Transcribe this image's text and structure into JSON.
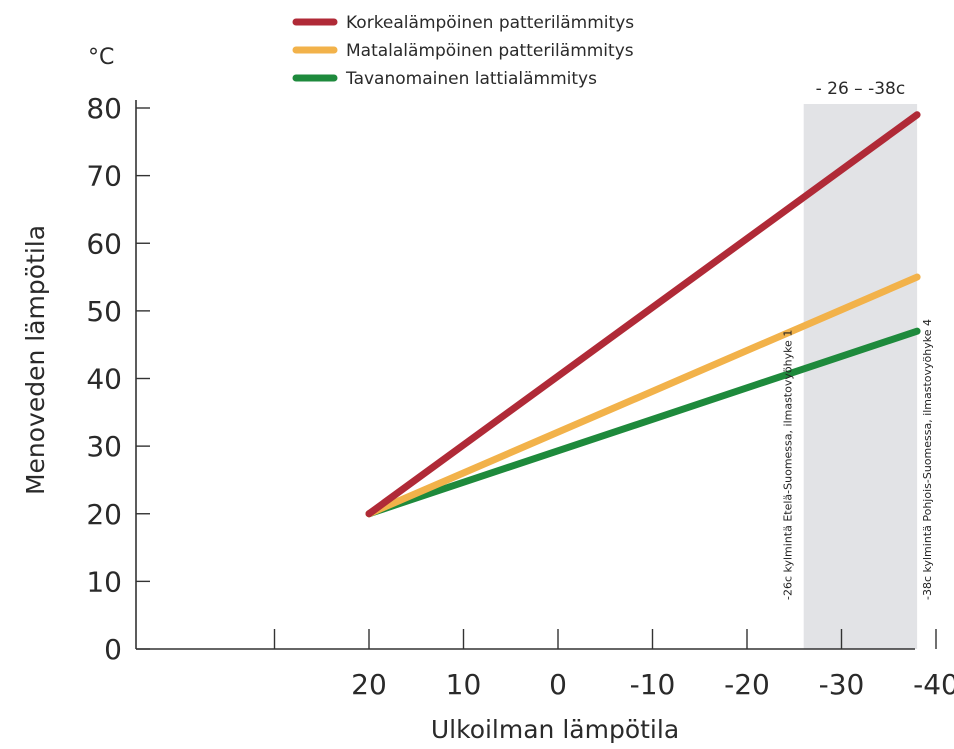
{
  "chart_data": {
    "type": "line",
    "xlabel": "Ulkoilman lämpötila",
    "ylabel": "Menoveden lämpötila",
    "y_unit": "°C",
    "x_ticks": [
      20,
      10,
      0,
      -10,
      -20,
      -30,
      -40
    ],
    "x_tick_labels": [
      "20",
      "10",
      "0",
      "-10",
      "-20",
      "-30",
      "-40"
    ],
    "y_ticks": [
      0,
      10,
      20,
      30,
      40,
      50,
      60,
      70,
      80
    ],
    "y_tick_labels": [
      "0",
      "10",
      "20",
      "30",
      "40",
      "50",
      "60",
      "70",
      "80"
    ],
    "xlim": [
      30,
      -41
    ],
    "ylim": [
      0,
      80
    ],
    "x_reversed": true,
    "grid": false,
    "legend_position": "top",
    "series": [
      {
        "name": "Korkealämpöinen patterilämmitys",
        "color": "#b02a37",
        "x": [
          20,
          -38
        ],
        "y": [
          20,
          79
        ]
      },
      {
        "name": "Matalalämpöinen patterilämmitys",
        "color": "#f2b24a",
        "x": [
          20,
          -38
        ],
        "y": [
          20,
          55
        ]
      },
      {
        "name": "Tavanomainen lattialämmitys",
        "color": "#1e8a3c",
        "x": [
          20,
          -38
        ],
        "y": [
          20,
          47
        ]
      }
    ],
    "shaded_band": {
      "x_range": [
        -26,
        -38
      ],
      "label": "- 26 – -38c",
      "color": "#e2e3e6"
    },
    "annotations": [
      {
        "x": -26,
        "text": "-26c kylmintä Etelä-Suomessa, ilmastovyöhyke 1"
      },
      {
        "x": -38,
        "text": "-38c kylmintä Pohjois-Suomessa, ilmastovyöhyke 4"
      }
    ]
  }
}
